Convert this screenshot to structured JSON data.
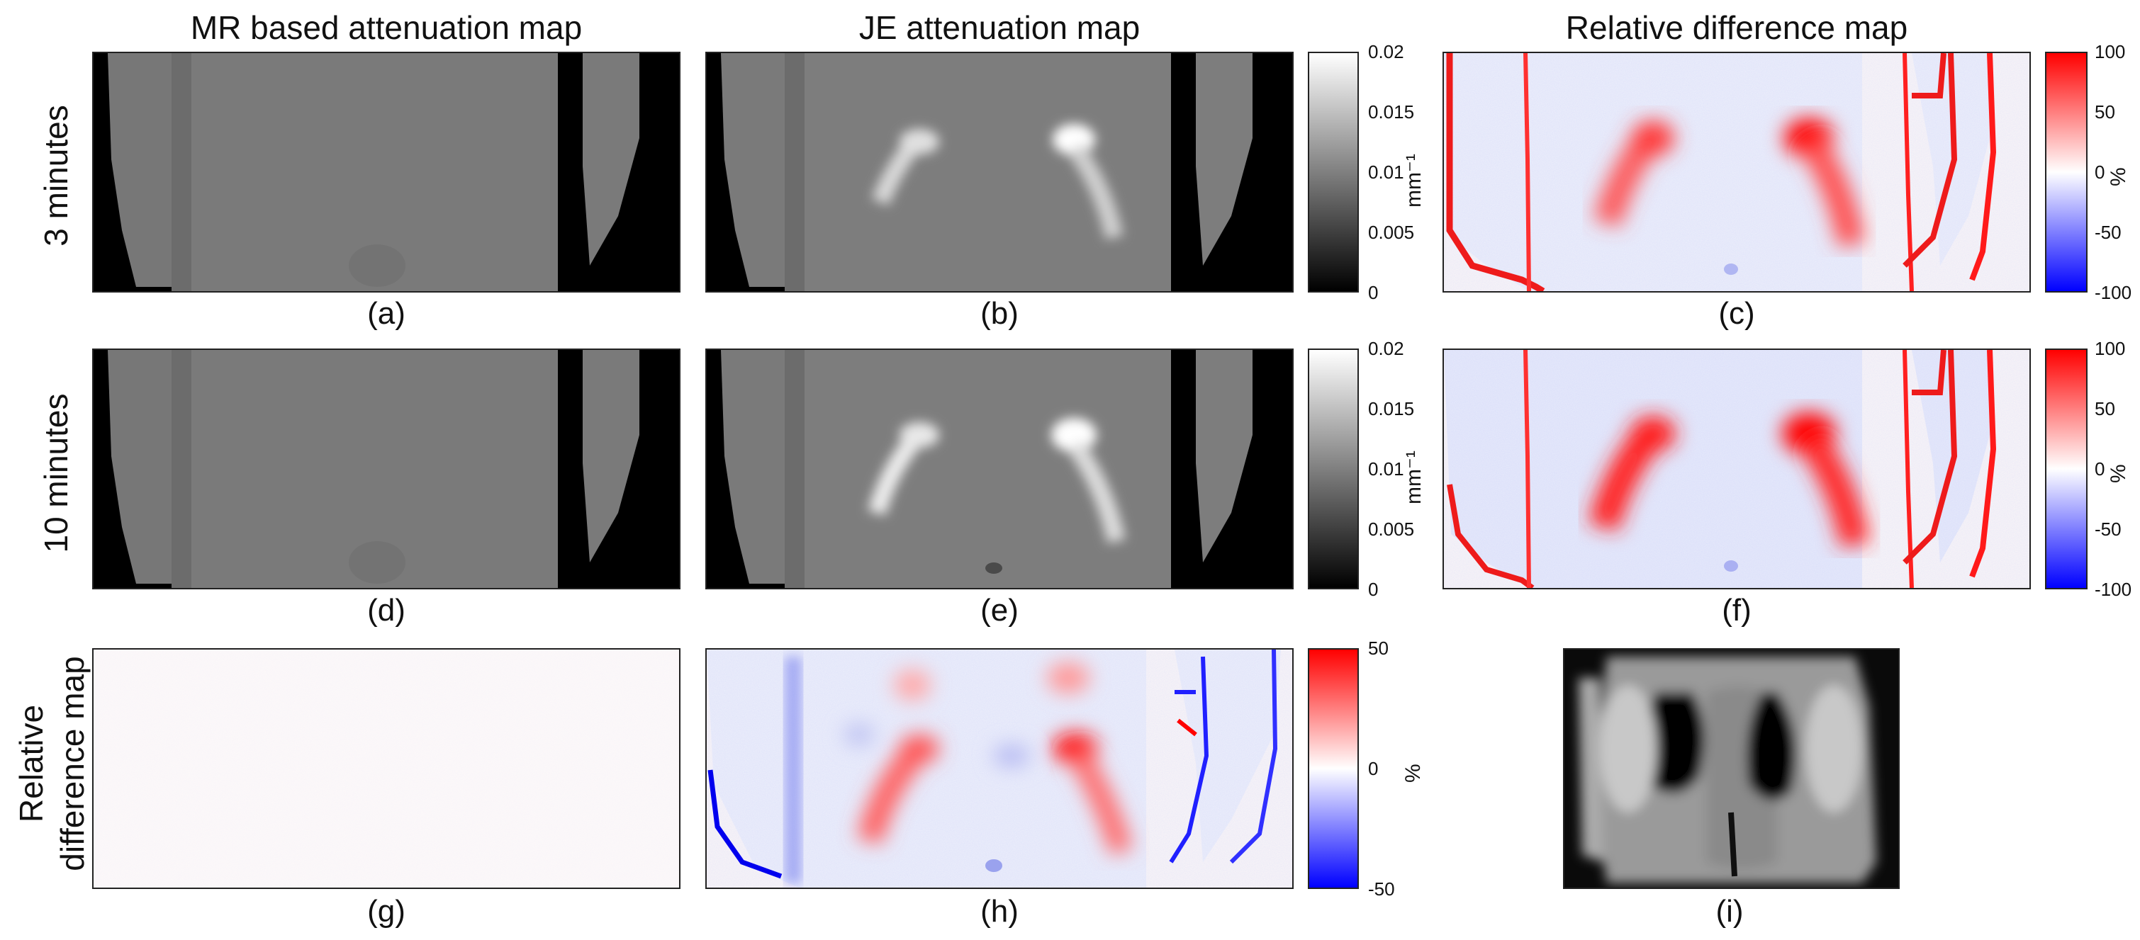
{
  "column_titles": {
    "mr": "MR based attenuation map",
    "je": "JE attenuation map",
    "rel": "Relative difference map"
  },
  "row_labels": {
    "row1": "3 minutes",
    "row2": "10 minutes",
    "row3_line1": "Relative",
    "row3_line2": "difference map"
  },
  "captions": {
    "a": "(a)",
    "b": "(b)",
    "c": "(c)",
    "d": "(d)",
    "e": "(e)",
    "f": "(f)",
    "g": "(g)",
    "h": "(h)",
    "i": "(i)"
  },
  "colorbar_atten": {
    "unit": "mm⁻¹",
    "ticks": [
      "0.02",
      "0.015",
      "0.01",
      "0.005",
      "0"
    ]
  },
  "colorbar_rel100": {
    "unit": "%",
    "ticks": [
      "100",
      "50",
      "0",
      "-50",
      "-100"
    ]
  },
  "colorbar_rel50": {
    "unit": "%",
    "ticks": [
      "50",
      "0",
      "-50"
    ]
  },
  "colors": {
    "red": "#ff0000",
    "blue": "#0000ff",
    "white": "#ffffff",
    "black": "#000000"
  }
}
